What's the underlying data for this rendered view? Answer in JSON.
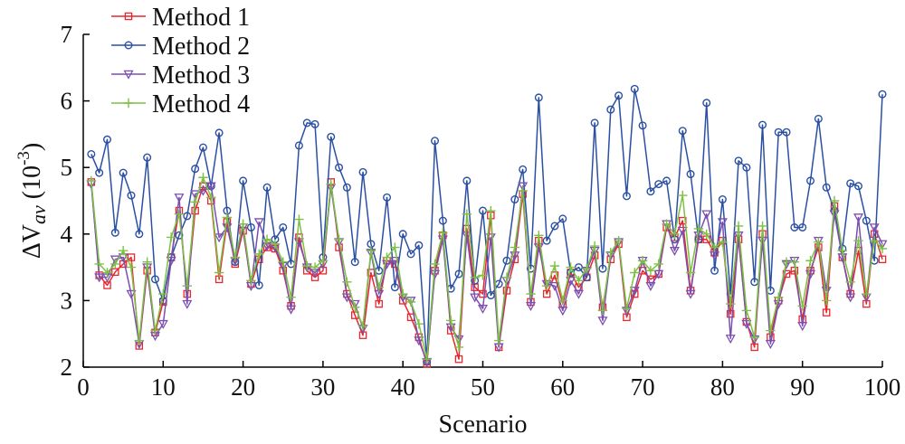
{
  "chart_data": {
    "type": "line",
    "xlabel": "Scenario",
    "ylabel_main": "ΔV",
    "ylabel_sub": "av",
    "ylabel_unit_base": " (10",
    "ylabel_unit_exp": "-3",
    "ylabel_unit_close": ")",
    "xlim": [
      0,
      100
    ],
    "ylim": [
      2,
      7
    ],
    "xticks": [
      0,
      10,
      20,
      30,
      40,
      50,
      60,
      70,
      80,
      90,
      100
    ],
    "yticks": [
      2,
      3,
      4,
      5,
      6,
      7
    ],
    "grid": false,
    "legend_position": "top-left",
    "x": [
      1,
      2,
      3,
      4,
      5,
      6,
      7,
      8,
      9,
      10,
      11,
      12,
      13,
      14,
      15,
      16,
      17,
      18,
      19,
      20,
      21,
      22,
      23,
      24,
      25,
      26,
      27,
      28,
      29,
      30,
      31,
      32,
      33,
      34,
      35,
      36,
      37,
      38,
      39,
      40,
      41,
      42,
      43,
      44,
      45,
      46,
      47,
      48,
      49,
      50,
      51,
      52,
      53,
      54,
      55,
      56,
      57,
      58,
      59,
      60,
      61,
      62,
      63,
      64,
      65,
      66,
      67,
      68,
      69,
      70,
      71,
      72,
      73,
      74,
      75,
      76,
      77,
      78,
      79,
      80,
      81,
      82,
      83,
      84,
      85,
      86,
      87,
      88,
      89,
      90,
      91,
      92,
      93,
      94,
      95,
      96,
      97,
      98,
      99,
      100
    ],
    "series": [
      {
        "name": "Method 1",
        "color": "#e8262e",
        "marker": "square",
        "values": [
          4.78,
          3.38,
          3.23,
          3.43,
          3.55,
          3.65,
          2.32,
          3.45,
          2.52,
          2.98,
          3.65,
          4.35,
          3.1,
          4.35,
          4.72,
          4.5,
          3.32,
          4.18,
          3.55,
          4.05,
          3.25,
          3.62,
          3.8,
          3.78,
          3.45,
          2.92,
          3.95,
          3.45,
          3.35,
          3.45,
          4.78,
          3.8,
          3.1,
          2.78,
          2.48,
          3.42,
          2.95,
          3.6,
          3.55,
          3.0,
          2.75,
          2.45,
          2.05,
          3.45,
          3.98,
          2.55,
          2.12,
          4.08,
          3.2,
          3.1,
          4.28,
          2.3,
          3.15,
          3.62,
          4.6,
          2.98,
          3.9,
          3.1,
          3.38,
          2.95,
          3.42,
          3.2,
          3.35,
          3.68,
          2.9,
          3.62,
          3.85,
          2.75,
          3.1,
          3.45,
          3.32,
          3.4,
          4.1,
          3.95,
          4.2,
          3.15,
          3.92,
          3.92,
          3.72,
          3.9,
          2.8,
          3.92,
          2.68,
          2.3,
          4.0,
          2.45,
          3.0,
          3.4,
          3.45,
          2.72,
          3.45,
          3.8,
          2.82,
          4.42,
          3.65,
          3.1,
          3.75,
          2.95,
          4.0,
          3.62
        ]
      },
      {
        "name": "Method 2",
        "color": "#2a4fa3",
        "marker": "circle",
        "values": [
          5.2,
          4.92,
          5.42,
          4.02,
          4.92,
          4.58,
          4.0,
          5.15,
          3.32,
          3.0,
          3.65,
          3.98,
          4.27,
          4.98,
          5.3,
          4.72,
          5.52,
          4.35,
          3.58,
          4.8,
          4.1,
          3.23,
          4.7,
          3.92,
          4.1,
          3.55,
          5.33,
          5.67,
          5.65,
          3.65,
          5.46,
          5.0,
          4.7,
          3.58,
          4.93,
          3.85,
          3.45,
          4.55,
          3.2,
          4.0,
          3.7,
          3.83,
          2.08,
          5.4,
          4.2,
          3.18,
          3.4,
          4.8,
          3.3,
          4.35,
          3.08,
          3.25,
          3.6,
          4.52,
          4.97,
          3.48,
          6.05,
          3.9,
          4.12,
          4.23,
          3.42,
          3.5,
          3.35,
          5.67,
          3.48,
          5.87,
          6.08,
          4.57,
          6.18,
          5.63,
          4.64,
          4.75,
          4.8,
          3.92,
          5.55,
          4.9,
          3.92,
          5.97,
          3.45,
          4.52,
          3.1,
          5.1,
          5.0,
          3.28,
          5.64,
          3.15,
          5.53,
          5.53,
          4.1,
          4.1,
          4.8,
          5.73,
          4.7,
          4.35,
          3.78,
          4.76,
          4.72,
          4.2,
          3.6,
          6.1
        ]
      },
      {
        "name": "Method 3",
        "color": "#7b4fb0",
        "marker": "triangle-down",
        "values": [
          4.75,
          3.35,
          3.35,
          3.62,
          3.65,
          3.1,
          2.35,
          3.5,
          2.47,
          2.65,
          3.6,
          4.55,
          2.95,
          4.6,
          4.65,
          4.72,
          3.95,
          4.1,
          3.6,
          4.1,
          3.22,
          4.18,
          3.82,
          3.8,
          3.52,
          2.87,
          3.88,
          3.5,
          3.42,
          3.55,
          4.7,
          3.88,
          3.05,
          2.95,
          2.58,
          3.72,
          3.1,
          3.55,
          3.6,
          3.05,
          3.0,
          2.4,
          2.08,
          3.4,
          3.92,
          2.6,
          2.42,
          3.98,
          3.05,
          2.88,
          3.95,
          2.3,
          3.3,
          3.68,
          4.72,
          2.92,
          3.8,
          3.25,
          3.22,
          2.85,
          3.3,
          3.1,
          3.45,
          3.75,
          2.7,
          3.68,
          3.88,
          2.85,
          3.15,
          3.6,
          3.22,
          3.4,
          4.15,
          3.75,
          4.05,
          3.1,
          3.98,
          4.3,
          3.68,
          4.18,
          2.43,
          3.98,
          2.65,
          2.42,
          3.9,
          2.35,
          2.95,
          3.55,
          3.6,
          2.62,
          3.4,
          3.9,
          3.15,
          4.3,
          3.65,
          3.05,
          4.25,
          3.05,
          4.1,
          3.85
        ]
      },
      {
        "name": "Method 4",
        "color": "#7cc142",
        "marker": "plus",
        "values": [
          4.8,
          3.55,
          3.42,
          3.55,
          3.75,
          3.5,
          2.4,
          3.58,
          2.55,
          3.1,
          3.95,
          4.3,
          3.22,
          4.48,
          4.85,
          4.55,
          3.42,
          4.25,
          3.65,
          4.15,
          3.3,
          3.7,
          3.92,
          3.85,
          3.58,
          3.05,
          4.22,
          3.52,
          3.5,
          3.6,
          4.75,
          3.92,
          3.28,
          2.9,
          2.62,
          3.75,
          3.2,
          3.65,
          3.8,
          3.1,
          2.98,
          2.65,
          2.12,
          3.55,
          4.02,
          2.7,
          2.3,
          4.3,
          3.35,
          3.38,
          4.35,
          2.4,
          3.35,
          3.8,
          4.65,
          3.1,
          3.98,
          3.22,
          3.52,
          3.0,
          3.5,
          3.3,
          3.48,
          3.82,
          2.85,
          3.72,
          3.9,
          2.88,
          3.42,
          3.6,
          3.45,
          3.55,
          4.15,
          4.0,
          4.58,
          3.42,
          4.08,
          4.0,
          3.8,
          3.88,
          2.95,
          4.12,
          2.85,
          2.45,
          4.12,
          2.55,
          3.05,
          3.58,
          3.58,
          2.92,
          3.6,
          3.88,
          3.0,
          4.5,
          3.75,
          3.28,
          3.9,
          3.1,
          3.9,
          3.78
        ]
      }
    ]
  }
}
